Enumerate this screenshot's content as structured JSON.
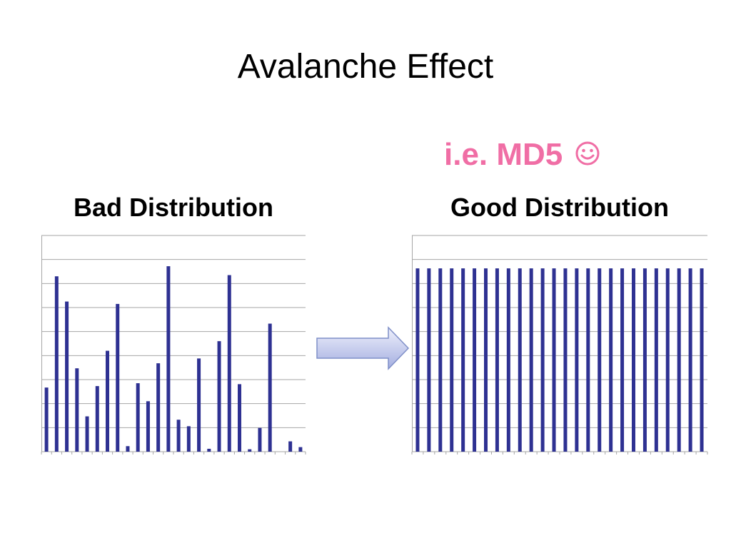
{
  "slide": {
    "title": "Avalanche Effect",
    "note_text": "i.e. MD5",
    "note_icon": "smiley-icon",
    "note_color": "#f06ea5"
  },
  "colors": {
    "bar": "#2e3192",
    "grid": "#a6a6a6",
    "arrow_fill_top": "#eef0fc",
    "arrow_fill_bottom": "#a4aee0",
    "arrow_stroke": "#7f8fc8"
  },
  "chart_data": [
    {
      "type": "bar",
      "title": "Bad Distribution",
      "xlabel": "",
      "ylabel": "",
      "ylim": [
        0,
        9
      ],
      "grid": true,
      "values": [
        2.67,
        7.3,
        6.25,
        3.47,
        1.47,
        2.73,
        4.2,
        6.15,
        0.23,
        2.85,
        2.1,
        3.68,
        7.72,
        1.33,
        1.06,
        3.88,
        0.12,
        4.6,
        7.35,
        2.81,
        0.1,
        0.99,
        5.33,
        0.0,
        0.43,
        0.19
      ]
    },
    {
      "type": "bar",
      "title": "Good Distribution",
      "xlabel": "",
      "ylabel": "",
      "ylim": [
        0,
        9
      ],
      "grid": true,
      "values": [
        7.63,
        7.63,
        7.63,
        7.63,
        7.63,
        7.63,
        7.63,
        7.63,
        7.63,
        7.63,
        7.63,
        7.63,
        7.63,
        7.63,
        7.63,
        7.63,
        7.63,
        7.63,
        7.63,
        7.63,
        7.63,
        7.63,
        7.63,
        7.63,
        7.63,
        7.63
      ]
    }
  ]
}
